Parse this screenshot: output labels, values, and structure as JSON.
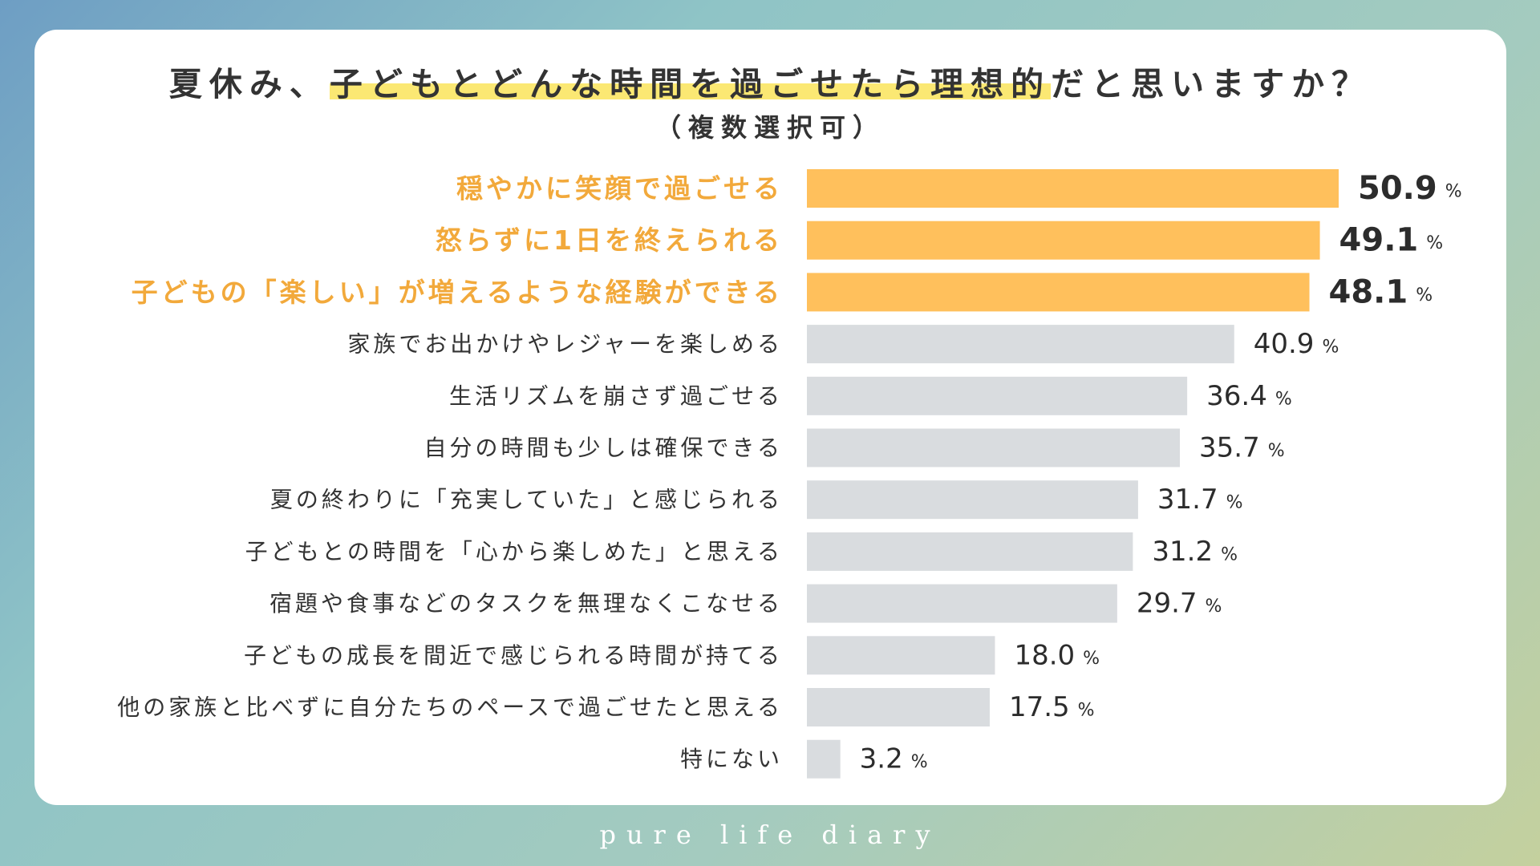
{
  "header": {
    "title_pre": "夏休み、",
    "title_highlight": "子どもとどんな時間を過ごせたら理想的",
    "title_post": "だと思いますか？",
    "subtitle": "（複数選択可）"
  },
  "footer": {
    "brand": "pure life diary"
  },
  "colors": {
    "highlight_bar": "#ffc05c",
    "highlight_label": "#f2a93b",
    "normal_bar": "#d9dcdf",
    "label_text": "#333333",
    "value_text": "#2c2c2c"
  },
  "chart_data": {
    "type": "bar",
    "orientation": "horizontal",
    "title": "夏休み、子どもとどんな時間を過ごせたら理想的だと思いますか？",
    "subtitle": "（複数選択可）",
    "unit": "%",
    "xlim": [
      0,
      50.9
    ],
    "categories": [
      "穏やかに笑顔で過ごせる",
      "怒らずに1日を終えられる",
      "子どもの「楽しい」が増えるような経験ができる",
      "家族でお出かけやレジャーを楽しめる",
      "生活リズムを崩さず過ごせる",
      "自分の時間も少しは確保できる",
      "夏の終わりに「充実していた」と感じられる",
      "子どもとの時間を「心から楽しめた」と思える",
      "宿題や食事などのタスクを無理なくこなせる",
      "子どもの成長を間近で感じられる時間が持てる",
      "他の家族と比べずに自分たちのペースで過ごせたと思える",
      "特にない"
    ],
    "values": [
      50.9,
      49.1,
      48.1,
      40.9,
      36.4,
      35.7,
      31.7,
      31.2,
      29.7,
      18.0,
      17.5,
      3.2
    ],
    "value_labels": [
      "50.9",
      "49.1",
      "48.1",
      "40.9",
      "36.4",
      "35.7",
      "31.7",
      "31.2",
      "29.7",
      "18.0",
      "17.5",
      "3.2"
    ],
    "highlighted": [
      true,
      true,
      true,
      false,
      false,
      false,
      false,
      false,
      false,
      false,
      false,
      false
    ]
  }
}
